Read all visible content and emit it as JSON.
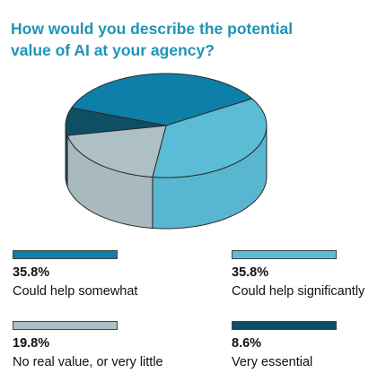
{
  "title_lines": [
    "How would you describe the potential",
    "value of AI at your agency?"
  ],
  "colors": {
    "title": "#1f93b8",
    "could_help_somewhat": "#0e7fa8",
    "could_help_significantly": "#5bbcd6",
    "no_real_value": "#aebfc6",
    "very_essential": "#0d4f63"
  },
  "chart_data": {
    "type": "pie",
    "style": "3d",
    "title": "How would you describe the potential value of AI at your agency?",
    "slices": [
      {
        "label": "Could help somewhat",
        "value": 35.8,
        "display": "35.8%",
        "color": "#0e7fa8"
      },
      {
        "label": "Could help significantly",
        "value": 35.8,
        "display": "35.8%",
        "color": "#5bbcd6"
      },
      {
        "label": "No real value, or very little",
        "value": 19.8,
        "display": "19.8%",
        "color": "#aebfc6"
      },
      {
        "label": "Very essential",
        "value": 8.6,
        "display": "8.6%",
        "color": "#0d4f63"
      }
    ],
    "legend_placement": "bottom"
  }
}
